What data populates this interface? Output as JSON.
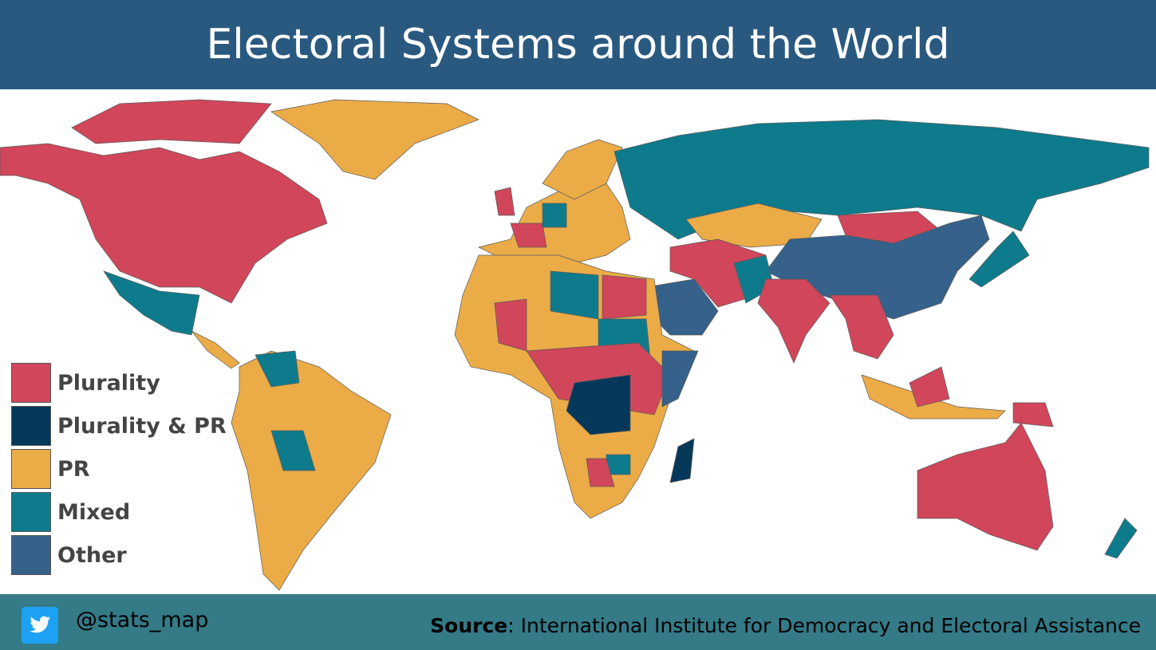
{
  "title": "Electoral Systems around the World",
  "legend": [
    {
      "label": "Plurality",
      "color": "#d1465a"
    },
    {
      "label": "Plurality & PR",
      "color": "#06385a"
    },
    {
      "label": "PR",
      "color": "#ebab47"
    },
    {
      "label": "Mixed",
      "color": "#0e7b8c"
    },
    {
      "label": "Other",
      "color": "#35618a"
    }
  ],
  "footer": {
    "handle": "@stats_map",
    "source_label": "Source",
    "source_text": ": International Institute for Democracy and Electoral Assistance"
  }
}
